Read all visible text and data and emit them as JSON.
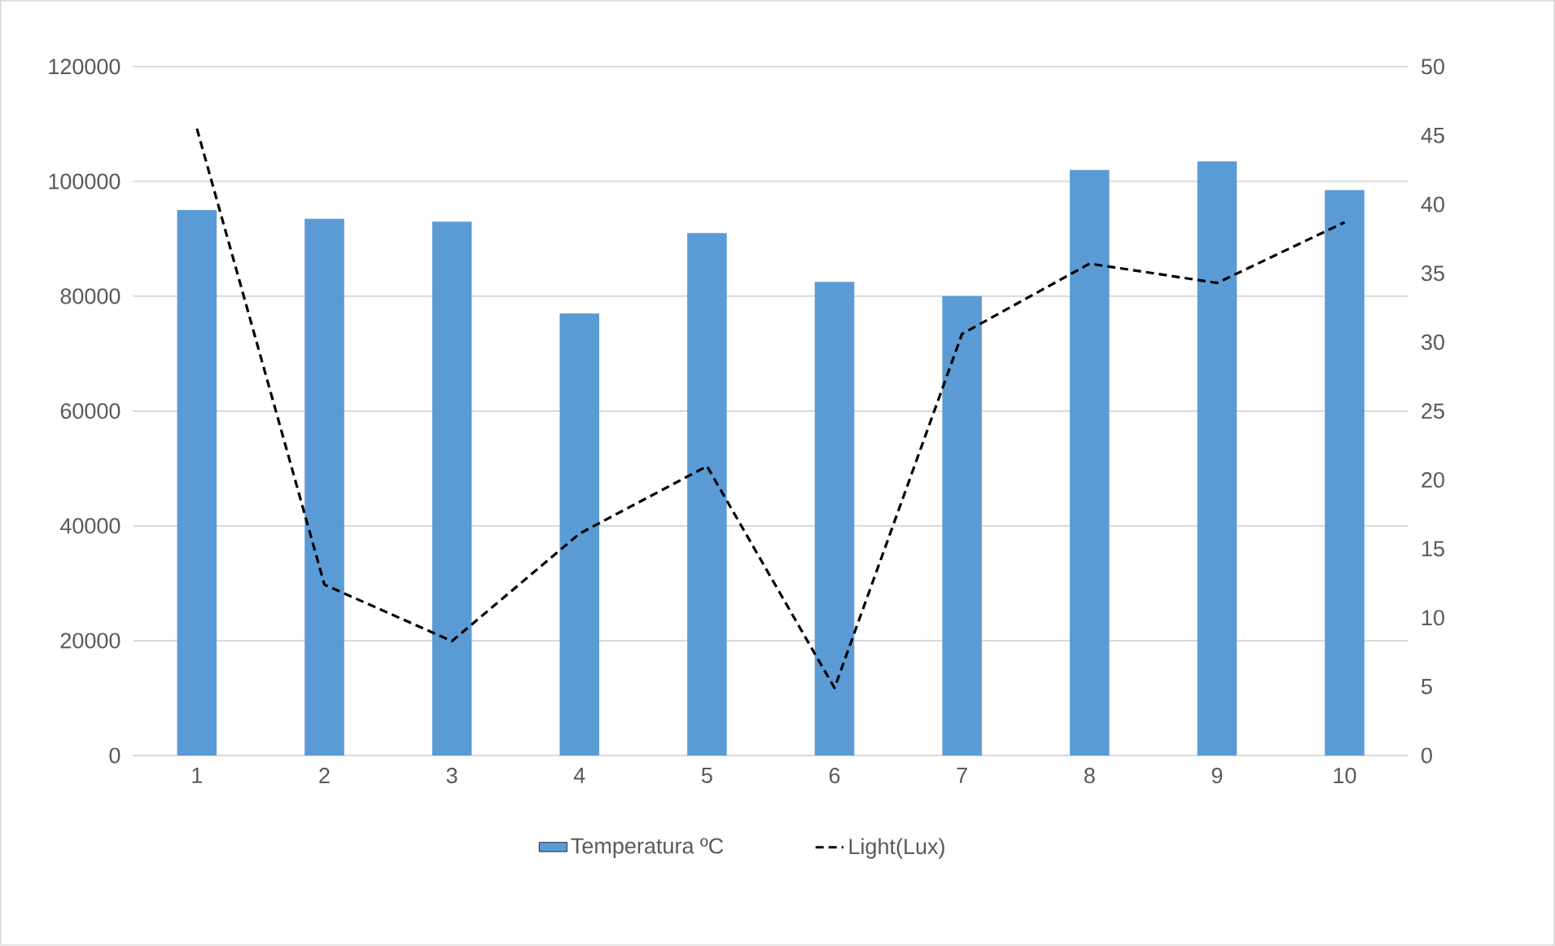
{
  "chart_data": {
    "type": "bar",
    "categories": [
      "1",
      "2",
      "3",
      "4",
      "5",
      "6",
      "7",
      "8",
      "9",
      "10"
    ],
    "series": [
      {
        "name": "Temperatura ºC",
        "color": "#5b9bd5",
        "values": [
          95000,
          93500,
          93000,
          77000,
          91000,
          82500,
          80000,
          102000,
          103500,
          98500
        ]
      },
      {
        "name": "Light(Lux)",
        "type": "line",
        "axis": "y2",
        "color": "#000000",
        "line_style": "dashed",
        "values": [
          45.5,
          12.4,
          8.3,
          16.1,
          21.0,
          4.9,
          30.6,
          35.7,
          34.3,
          38.7
        ]
      }
    ],
    "ylim": [
      0,
      120000
    ],
    "yticks": [
      0,
      20000,
      40000,
      60000,
      80000,
      100000,
      120000
    ],
    "y2lim": [
      0,
      50
    ],
    "y2ticks": [
      0,
      5,
      10,
      15,
      20,
      25,
      30,
      35,
      40,
      45,
      50
    ],
    "grid": "y",
    "legend": "bottom"
  }
}
